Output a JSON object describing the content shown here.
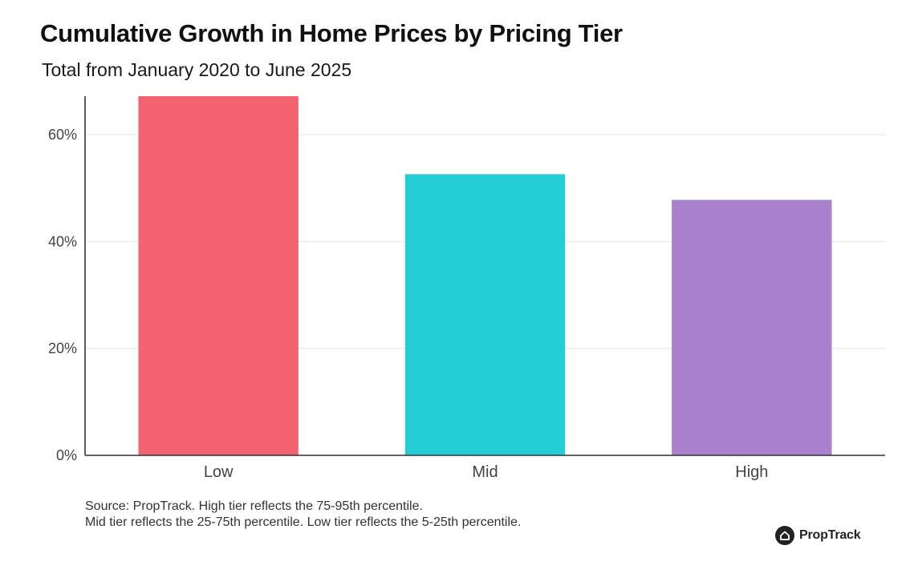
{
  "chart_data": {
    "type": "bar",
    "title": "Cumulative Growth in Home Prices by Pricing Tier",
    "subtitle": "Total from January 2020 to June 2025",
    "categories": [
      "Low",
      "Mid",
      "High"
    ],
    "values": [
      67.2,
      52.6,
      47.8
    ],
    "colors": [
      "#f2636f",
      "#24cdd6",
      "#a880cc"
    ],
    "ylim": [
      0,
      67.2
    ],
    "yticks": [
      0,
      20,
      40,
      60
    ],
    "ytick_labels": [
      "0%",
      "20%",
      "40%",
      "60%"
    ],
    "grid": true,
    "xlabel": "",
    "ylabel": ""
  },
  "footer": {
    "source_line1": "Source: PropTrack. High tier reflects the 75-95th percentile.",
    "source_line2": "Mid tier reflects the 25-75th percentile. Low tier reflects the 5-25th percentile.",
    "logo_text": "PropTrack",
    "logo_icon": "house-icon"
  }
}
